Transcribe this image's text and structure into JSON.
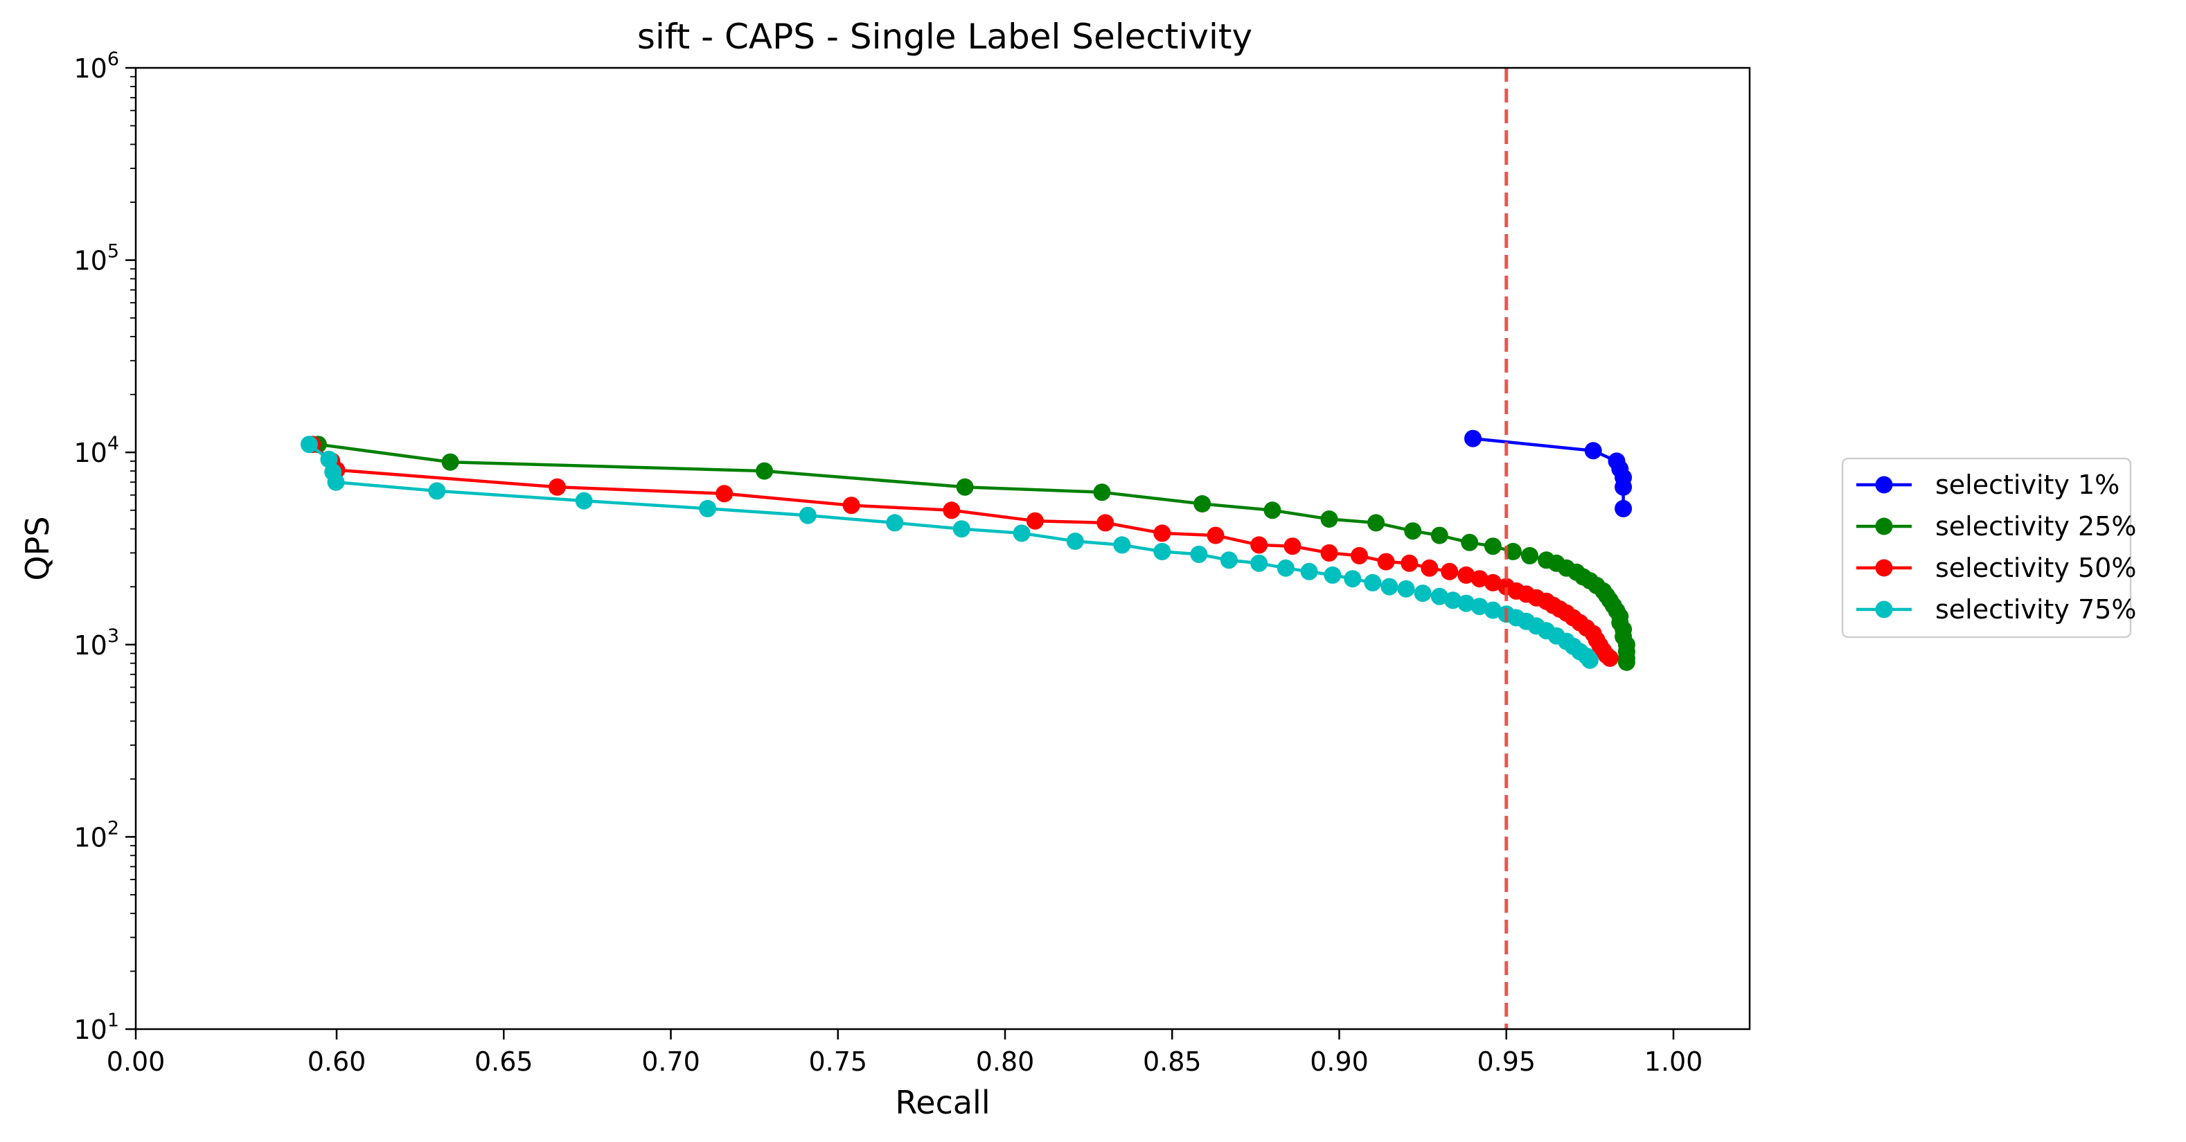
{
  "chart_data": {
    "type": "line",
    "title": "sift - CAPS - Single Label Selectivity",
    "xlabel": "Recall",
    "ylabel": "QPS",
    "x_scale": "linear",
    "y_scale": "log",
    "xlim": [
      0.0,
      1.025
    ],
    "ylim": [
      10,
      1000000
    ],
    "x_ticks": [
      {
        "value": 0.0,
        "label": "0.00"
      },
      {
        "value": 0.6,
        "label": "0.60"
      },
      {
        "value": 0.65,
        "label": "0.65"
      },
      {
        "value": 0.7,
        "label": "0.70"
      },
      {
        "value": 0.75,
        "label": "0.75"
      },
      {
        "value": 0.8,
        "label": "0.80"
      },
      {
        "value": 0.85,
        "label": "0.85"
      },
      {
        "value": 0.9,
        "label": "0.90"
      },
      {
        "value": 0.95,
        "label": "0.95"
      },
      {
        "value": 1.0,
        "label": "1.00"
      }
    ],
    "y_ticks": [
      {
        "value": 10,
        "base": "10",
        "exp": "1"
      },
      {
        "value": 100,
        "base": "10",
        "exp": "2"
      },
      {
        "value": 1000,
        "base": "10",
        "exp": "3"
      },
      {
        "value": 10000,
        "base": "10",
        "exp": "4"
      },
      {
        "value": 100000,
        "base": "10",
        "exp": "5"
      },
      {
        "value": 1000000,
        "base": "10",
        "exp": "6"
      }
    ],
    "grid": false,
    "legend_position": "right-outside",
    "reference_lines": [
      {
        "axis": "x",
        "value": 0.95,
        "color": "#e8453c",
        "style": "dashed"
      }
    ],
    "series": [
      {
        "name": "selectivity 1%",
        "color": "#0000ff",
        "points": [
          [
            0.94,
            11800
          ],
          [
            0.976,
            10200
          ],
          [
            0.983,
            9000
          ],
          [
            0.984,
            8200
          ],
          [
            0.985,
            7400
          ],
          [
            0.985,
            6600
          ],
          [
            0.985,
            5100
          ]
        ]
      },
      {
        "name": "selectivity 25%",
        "color": "#008000",
        "points": [
          [
            0.545,
            11000
          ],
          [
            0.634,
            8900
          ],
          [
            0.728,
            8000
          ],
          [
            0.788,
            6600
          ],
          [
            0.829,
            6200
          ],
          [
            0.859,
            5400
          ],
          [
            0.88,
            5000
          ],
          [
            0.897,
            4500
          ],
          [
            0.911,
            4300
          ],
          [
            0.922,
            3900
          ],
          [
            0.93,
            3700
          ],
          [
            0.939,
            3400
          ],
          [
            0.946,
            3250
          ],
          [
            0.952,
            3050
          ],
          [
            0.957,
            2900
          ],
          [
            0.962,
            2750
          ],
          [
            0.965,
            2650
          ],
          [
            0.968,
            2500
          ],
          [
            0.971,
            2380
          ],
          [
            0.973,
            2250
          ],
          [
            0.975,
            2150
          ],
          [
            0.977,
            2030
          ],
          [
            0.979,
            1900
          ],
          [
            0.98,
            1800
          ],
          [
            0.981,
            1700
          ],
          [
            0.982,
            1600
          ],
          [
            0.983,
            1500
          ],
          [
            0.984,
            1400
          ],
          [
            0.984,
            1300
          ],
          [
            0.985,
            1200
          ],
          [
            0.985,
            1100
          ],
          [
            0.986,
            1000
          ],
          [
            0.986,
            920
          ],
          [
            0.986,
            850
          ],
          [
            0.986,
            810
          ]
        ]
      },
      {
        "name": "selectivity 50%",
        "color": "#ff0000",
        "points": [
          [
            0.527,
            11000
          ],
          [
            0.585,
            9000
          ],
          [
            0.6,
            8100
          ],
          [
            0.666,
            6600
          ],
          [
            0.716,
            6100
          ],
          [
            0.754,
            5300
          ],
          [
            0.784,
            5000
          ],
          [
            0.809,
            4400
          ],
          [
            0.83,
            4300
          ],
          [
            0.847,
            3800
          ],
          [
            0.863,
            3700
          ],
          [
            0.876,
            3300
          ],
          [
            0.886,
            3250
          ],
          [
            0.897,
            3000
          ],
          [
            0.906,
            2900
          ],
          [
            0.914,
            2700
          ],
          [
            0.921,
            2650
          ],
          [
            0.927,
            2500
          ],
          [
            0.933,
            2400
          ],
          [
            0.938,
            2300
          ],
          [
            0.942,
            2200
          ],
          [
            0.946,
            2100
          ],
          [
            0.95,
            2000
          ],
          [
            0.953,
            1900
          ],
          [
            0.956,
            1830
          ],
          [
            0.959,
            1750
          ],
          [
            0.962,
            1680
          ],
          [
            0.964,
            1600
          ],
          [
            0.966,
            1530
          ],
          [
            0.968,
            1460
          ],
          [
            0.97,
            1380
          ],
          [
            0.972,
            1300
          ],
          [
            0.974,
            1220
          ],
          [
            0.976,
            1140
          ],
          [
            0.977,
            1060
          ],
          [
            0.978,
            990
          ],
          [
            0.979,
            930
          ],
          [
            0.98,
            880
          ],
          [
            0.981,
            850
          ]
        ]
      },
      {
        "name": "selectivity 75%",
        "color": "#00bfbf",
        "points": [
          [
            0.518,
            11000
          ],
          [
            0.577,
            9200
          ],
          [
            0.589,
            7900
          ],
          [
            0.598,
            7000
          ],
          [
            0.63,
            6300
          ],
          [
            0.674,
            5600
          ],
          [
            0.711,
            5100
          ],
          [
            0.741,
            4700
          ],
          [
            0.767,
            4300
          ],
          [
            0.787,
            4000
          ],
          [
            0.805,
            3800
          ],
          [
            0.821,
            3450
          ],
          [
            0.835,
            3300
          ],
          [
            0.847,
            3050
          ],
          [
            0.858,
            2950
          ],
          [
            0.867,
            2750
          ],
          [
            0.876,
            2650
          ],
          [
            0.884,
            2500
          ],
          [
            0.891,
            2400
          ],
          [
            0.898,
            2300
          ],
          [
            0.904,
            2200
          ],
          [
            0.91,
            2100
          ],
          [
            0.915,
            2000
          ],
          [
            0.92,
            1950
          ],
          [
            0.925,
            1850
          ],
          [
            0.93,
            1780
          ],
          [
            0.934,
            1700
          ],
          [
            0.938,
            1640
          ],
          [
            0.942,
            1580
          ],
          [
            0.946,
            1510
          ],
          [
            0.95,
            1440
          ],
          [
            0.953,
            1380
          ],
          [
            0.956,
            1320
          ],
          [
            0.959,
            1250
          ],
          [
            0.962,
            1180
          ],
          [
            0.965,
            1110
          ],
          [
            0.968,
            1040
          ],
          [
            0.97,
            980
          ],
          [
            0.972,
            920
          ],
          [
            0.974,
            870
          ],
          [
            0.975,
            830
          ]
        ]
      }
    ]
  }
}
